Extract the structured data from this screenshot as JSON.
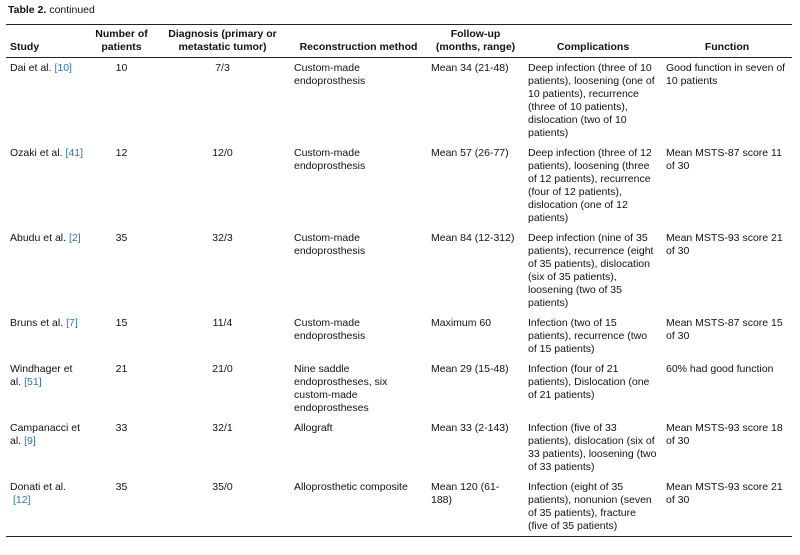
{
  "caption": {
    "label": "Table 2.",
    "text": "continued"
  },
  "table": {
    "headers": [
      "Study",
      "Number of patients",
      "Diagnosis (primary or metastatic tumor)",
      "Reconstruction method",
      "Follow-up (months, range)",
      "Complications",
      "Function"
    ],
    "rows": [
      [
        {
          "name": "Dai et al.",
          "ref": "[10]"
        },
        "10",
        "7/3",
        "Custom-made endoprosthesis",
        "Mean 34 (21-48)",
        "Deep infection (three of 10 patients), loosening (one of 10 patients), recurrence (three of 10 patients), dislocation (two of 10 patients)",
        "Good function in seven of 10 patients"
      ],
      [
        {
          "name": "Ozaki et al.",
          "ref": "[41]"
        },
        "12",
        "12/0",
        "Custom-made endoprosthesis",
        "Mean 57 (26-77)",
        "Deep infection (three of 12 patients), loosening (three of 12 patients), recurrence (four of 12 patients), dislocation (one of 12 patients)",
        "Mean MSTS-87 score 11 of 30"
      ],
      [
        {
          "name": "Abudu et al.",
          "ref": "[2]"
        },
        "35",
        "32/3",
        "Custom-made endoprosthesis",
        "Mean 84 (12-312)",
        "Deep infection (nine of 35 patients), recurrence (eight of 35 patients), dislocation (six of 35 patients), loosening (two of 35 patients)",
        "Mean MSTS-93 score 21 of 30"
      ],
      [
        {
          "name": "Bruns et al.",
          "ref": "[7]"
        },
        "15",
        "11/4",
        "Custom-made endoprosthesis",
        "Maximum 60",
        "Infection (two of 15 patients), recurrence (two of 15 patients)",
        "Mean MSTS-87 score 15 of 30"
      ],
      [
        {
          "name": "Windhager et al.",
          "ref": "[51]"
        },
        "21",
        "21/0",
        "Nine saddle endoprostheses, six custom-made endoprostheses",
        "Mean 29 (15-48)",
        "Infection (four of 21 patients), Dislocation (one of 21 patients)",
        "60% had good function"
      ],
      [
        {
          "name": "Campanacci et al.",
          "ref": "[9]"
        },
        "33",
        "32/1",
        "Allograft",
        "Mean 33 (2-143)",
        "Infection (five of 33 patients), dislocation (six of 33 patients), loosening (two of 33 patients)",
        "Mean MSTS-93 score 18 of 30"
      ],
      [
        {
          "name": "Donati et al.",
          "ref": "[12]"
        },
        "35",
        "35/0",
        "Alloprosthetic composite",
        "Mean 120 (61-188)",
        "Infection (eight of 35 patients), nonunion (seven of 35 patients), fracture (five of 35 patients)",
        "Mean MSTS-93 score 21 of 30"
      ]
    ]
  }
}
